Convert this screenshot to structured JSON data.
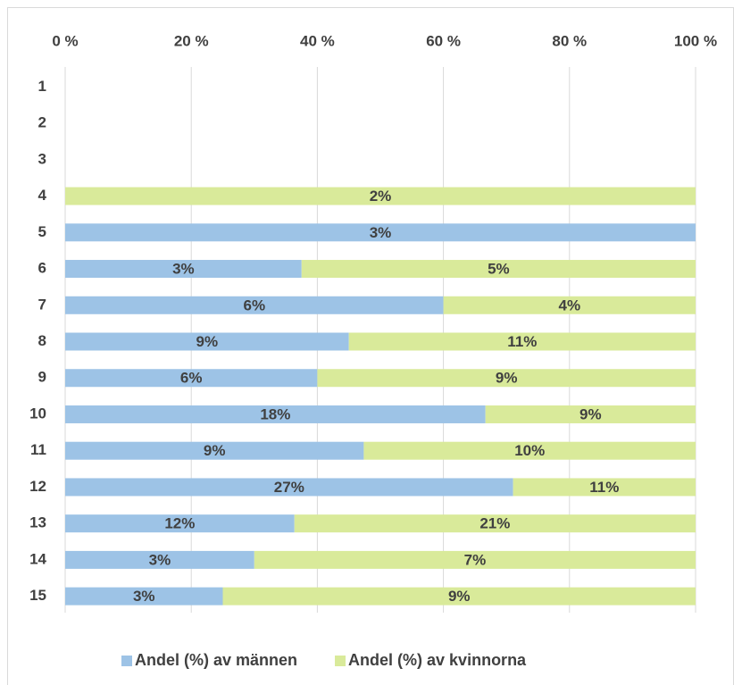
{
  "chart_data": {
    "type": "bar",
    "orientation": "horizontal",
    "stacked": "percent",
    "categories": [
      "1",
      "2",
      "3",
      "4",
      "5",
      "6",
      "7",
      "8",
      "9",
      "10",
      "11",
      "12",
      "13",
      "14",
      "15"
    ],
    "series": [
      {
        "name": "Andel (%) av männen",
        "color": "#9dc3e6",
        "values": [
          null,
          null,
          null,
          null,
          3,
          3,
          6,
          9,
          6,
          18,
          9,
          27,
          12,
          3,
          3
        ],
        "value_labels": [
          null,
          null,
          null,
          null,
          "3%",
          "3%",
          "6%",
          "9%",
          "6%",
          "18%",
          "9%",
          "27%",
          "12%",
          "3%",
          "3%"
        ]
      },
      {
        "name": "Andel (%) av kvinnorna",
        "color": "#d9ea9a",
        "values": [
          null,
          null,
          null,
          2,
          null,
          5,
          4,
          11,
          9,
          9,
          10,
          11,
          21,
          7,
          9
        ],
        "value_labels": [
          null,
          null,
          null,
          "2%",
          null,
          "5%",
          "4%",
          "11%",
          "9%",
          "9%",
          "10%",
          "11%",
          "21%",
          "7%",
          "9%"
        ]
      }
    ],
    "xlim": [
      0,
      100
    ],
    "xticks": [
      {
        "value": 0,
        "label": "0 %"
      },
      {
        "value": 20,
        "label": "20 %"
      },
      {
        "value": 40,
        "label": "40 %"
      },
      {
        "value": 60,
        "label": "60 %"
      },
      {
        "value": 80,
        "label": "80 %"
      },
      {
        "value": 100,
        "label": "100 %"
      }
    ],
    "grid": true,
    "legend": "bottom"
  }
}
